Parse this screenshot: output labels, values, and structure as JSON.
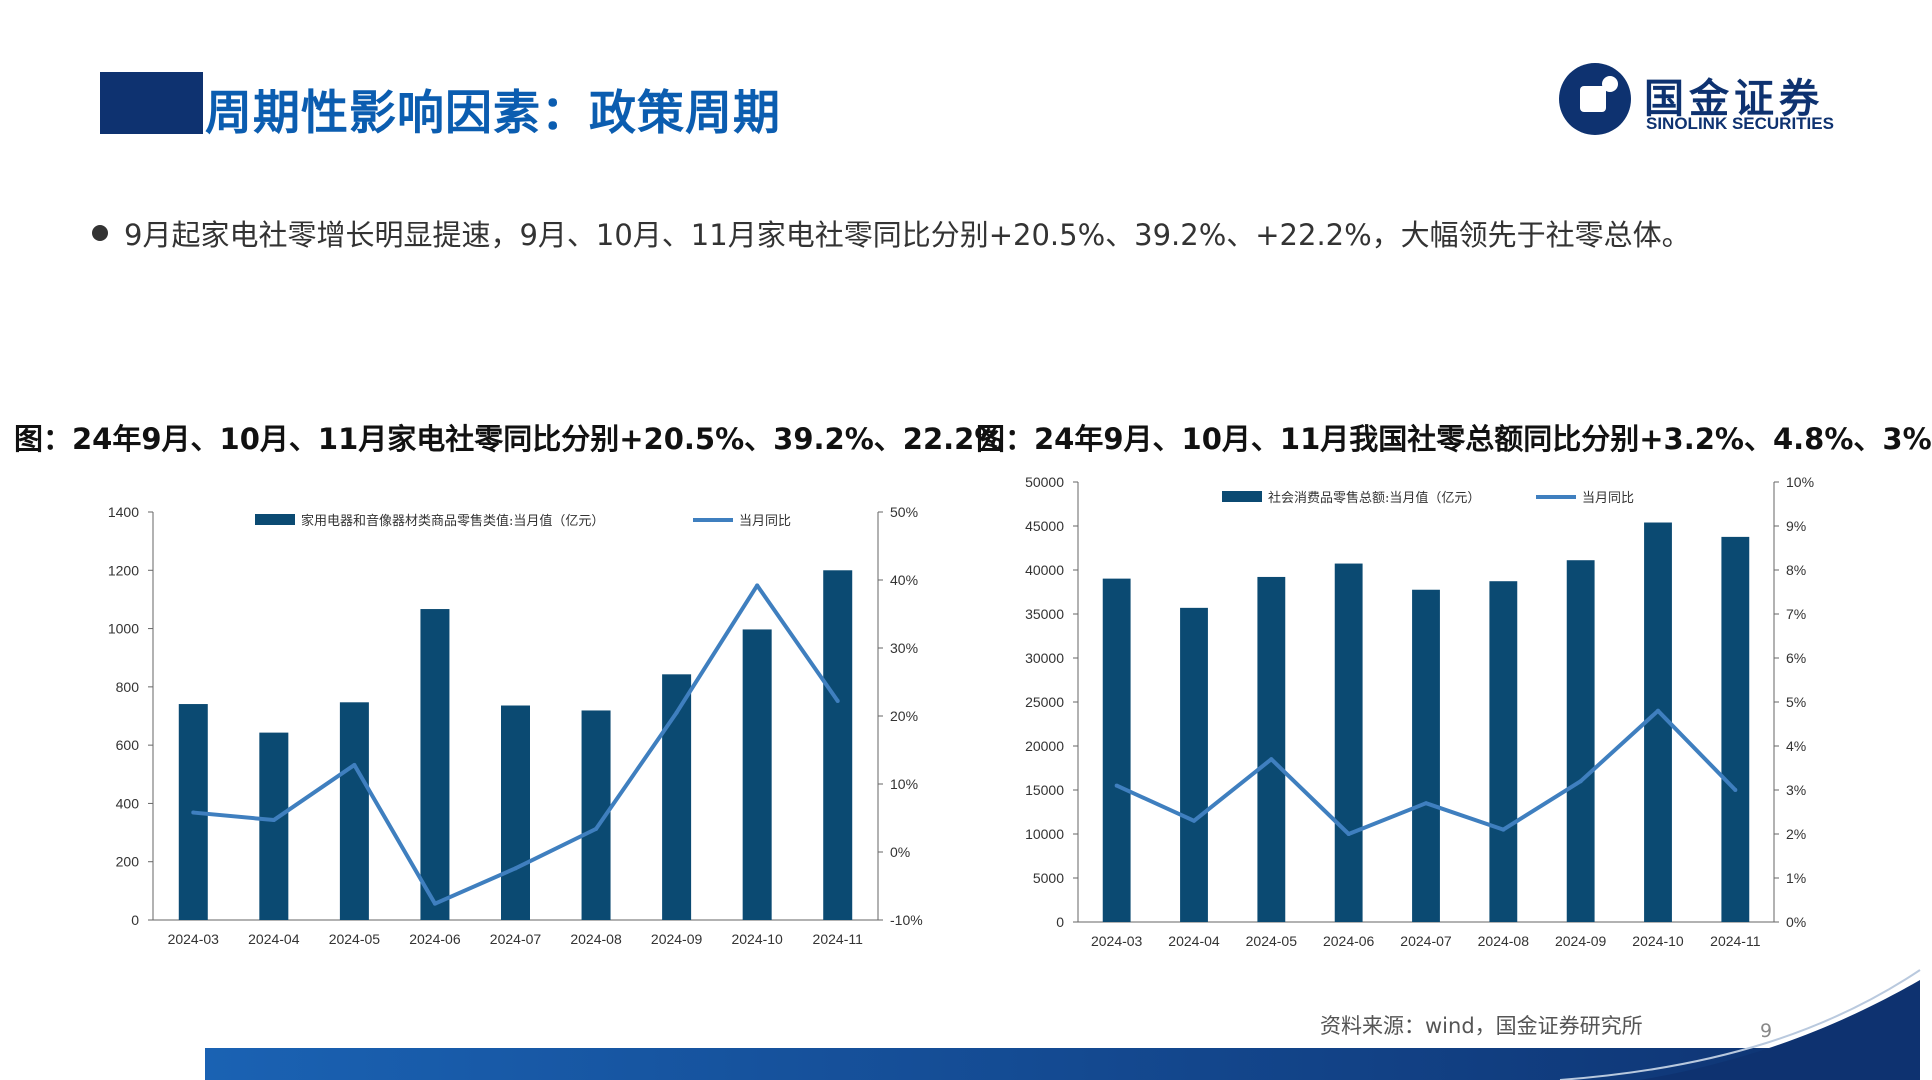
{
  "header": {
    "title": "周期性影响因素：政策周期",
    "logo_cn": "国金证券",
    "logo_en": "SINOLINK SECURITIES"
  },
  "bullet": {
    "text": "9月起家电社零增长明显提速，9月、10月、11月家电社零同比分别+20.5%、39.2%、+22.2%，大幅领先于社零总体。"
  },
  "captions": {
    "left": "图：24年9月、10月、11月家电社零同比分别+20.5%、39.2%、22.2%",
    "right": "图：24年9月、10月、11月我国社零总额同比分别+3.2%、4.8%、3%"
  },
  "footer": {
    "source": "资料来源：wind，国金证券研究所",
    "page_number": "9"
  },
  "colors": {
    "bar": "#0b4a72",
    "line": "#3f7fbf",
    "title_block": "#0e3270",
    "title_text": "#0b5db0"
  },
  "chart_data": [
    {
      "type": "bar",
      "categories": [
        "2024-03",
        "2024-04",
        "2024-05",
        "2024-06",
        "2024-07",
        "2024-08",
        "2024-09",
        "2024-10",
        "2024-11"
      ],
      "series": [
        {
          "name": "家用电器和音像器材类商品零售类值:当月值（亿元）",
          "type": "bar",
          "axis": "left",
          "values": [
            741,
            643,
            747,
            1067,
            736,
            719,
            843,
            997,
            1200
          ]
        },
        {
          "name": "当月同比",
          "type": "line",
          "axis": "right",
          "values": [
            5.8,
            4.7,
            12.8,
            -7.6,
            -2.4,
            3.4,
            20.5,
            39.2,
            22.2
          ]
        }
      ],
      "ylim": [
        0,
        1400
      ],
      "yticks": [
        "0",
        "200",
        "400",
        "600",
        "800",
        "1000",
        "1200",
        "1400"
      ],
      "y2lim": [
        -10,
        50
      ],
      "y2ticks": [
        "-10%",
        "0%",
        "10%",
        "20%",
        "30%",
        "40%",
        "50%"
      ],
      "legend": "top"
    },
    {
      "type": "bar",
      "categories": [
        "2024-03",
        "2024-04",
        "2024-05",
        "2024-06",
        "2024-07",
        "2024-08",
        "2024-09",
        "2024-10",
        "2024-11"
      ],
      "series": [
        {
          "name": "社会消费品零售总额:当月值（亿元）",
          "type": "bar",
          "axis": "left",
          "values": [
            39020,
            35699,
            39211,
            40732,
            37757,
            38726,
            41112,
            45396,
            43763
          ]
        },
        {
          "name": "当月同比",
          "type": "line",
          "axis": "right",
          "values": [
            3.1,
            2.3,
            3.7,
            2.0,
            2.7,
            2.1,
            3.2,
            4.8,
            3.0
          ]
        }
      ],
      "ylim": [
        0,
        50000
      ],
      "yticks": [
        "0",
        "5000",
        "10000",
        "15000",
        "20000",
        "25000",
        "30000",
        "35000",
        "40000",
        "45000",
        "50000"
      ],
      "y2lim": [
        0,
        10
      ],
      "y2ticks": [
        "0%",
        "1%",
        "2%",
        "3%",
        "4%",
        "5%",
        "6%",
        "7%",
        "8%",
        "9%",
        "10%"
      ],
      "legend": "top"
    }
  ]
}
